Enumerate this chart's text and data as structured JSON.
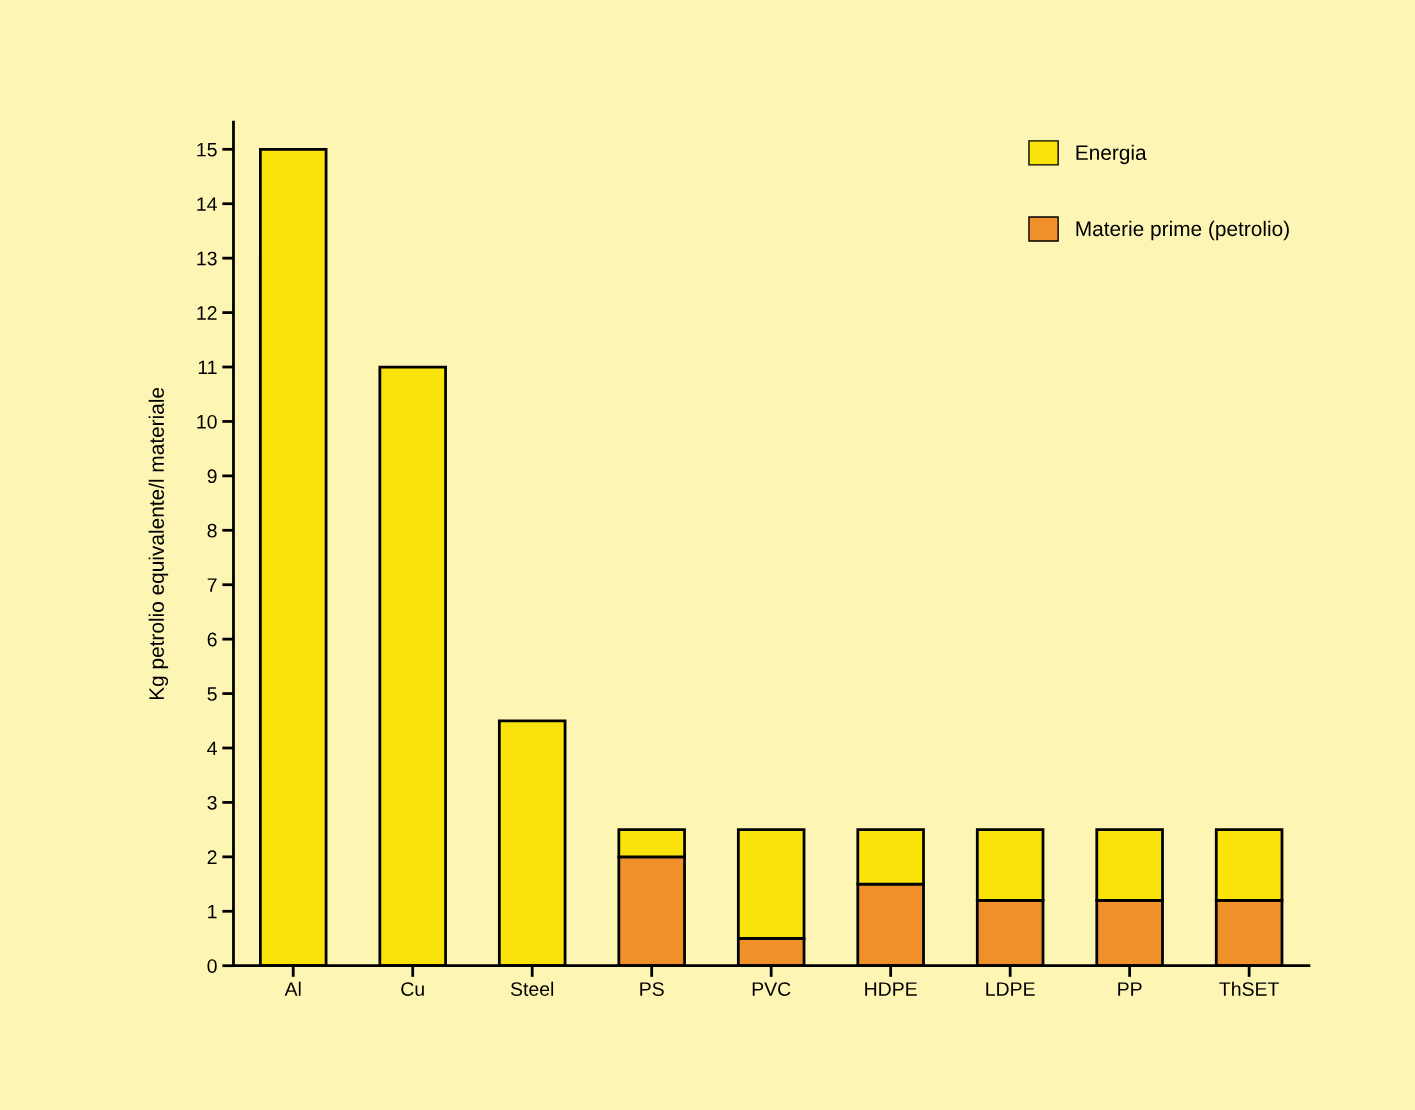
{
  "chart_data": {
    "type": "bar",
    "stacked": true,
    "ylabel": "Kg petrolio equivalente/l materiale",
    "categories": [
      "Al",
      "Cu",
      "Steel",
      "PS",
      "PVC",
      "HDPE",
      "LDPE",
      "PP",
      "ThSET"
    ],
    "series": [
      {
        "name": "Materie prime (petrolio)",
        "color": "#f0902a",
        "values": [
          0,
          0,
          0,
          2.0,
          0.5,
          1.5,
          1.2,
          1.2,
          1.2
        ]
      },
      {
        "name": "Energia",
        "color": "#fae30a",
        "values": [
          15,
          11,
          4.5,
          0.5,
          2.0,
          1.0,
          1.3,
          1.3,
          1.3
        ]
      }
    ],
    "ylim": [
      0,
      15.5
    ],
    "yticks": [
      0,
      1,
      2,
      3,
      4,
      5,
      6,
      7,
      8,
      9,
      10,
      11,
      12,
      13,
      14,
      15
    ],
    "grid": false,
    "legend": "top right"
  }
}
